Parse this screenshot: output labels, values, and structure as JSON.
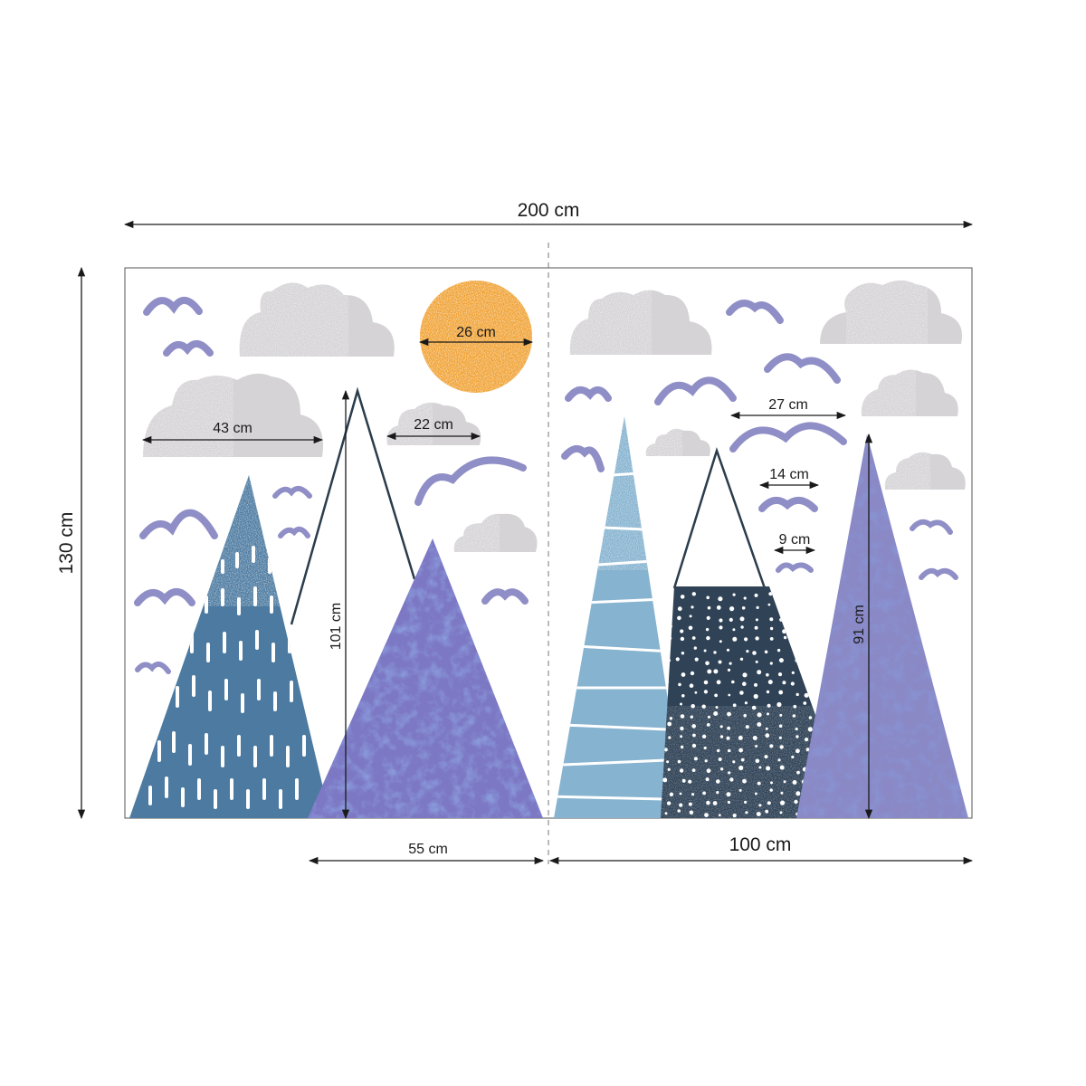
{
  "dimensions": {
    "total_width": "200 cm",
    "total_height": "130 cm",
    "right_panel_width": "100 cm",
    "purple_mountain_base": "55 cm",
    "outline_mountain_height": "101 cm",
    "right_mountain_height": "91 cm",
    "sun_diameter": "26 cm",
    "large_cloud_width": "43 cm",
    "small_cloud_width": "22 cm",
    "large_bird_width": "27 cm",
    "medium_bird_width": "14 cm",
    "small_bird_width": "9 cm"
  },
  "colors": {
    "sun": "#f0a030",
    "cloud": "#d5d3d6",
    "bird": "#8f8ec6",
    "steel_blue_mountain": "#4c7aa0",
    "purple_mountain": "#7d78c4",
    "light_blue_mountain": "#86b3d0",
    "navy_mountain": "#2f4256",
    "lavender_mountain": "#8a89c6",
    "outline": "#2b3d4c"
  }
}
